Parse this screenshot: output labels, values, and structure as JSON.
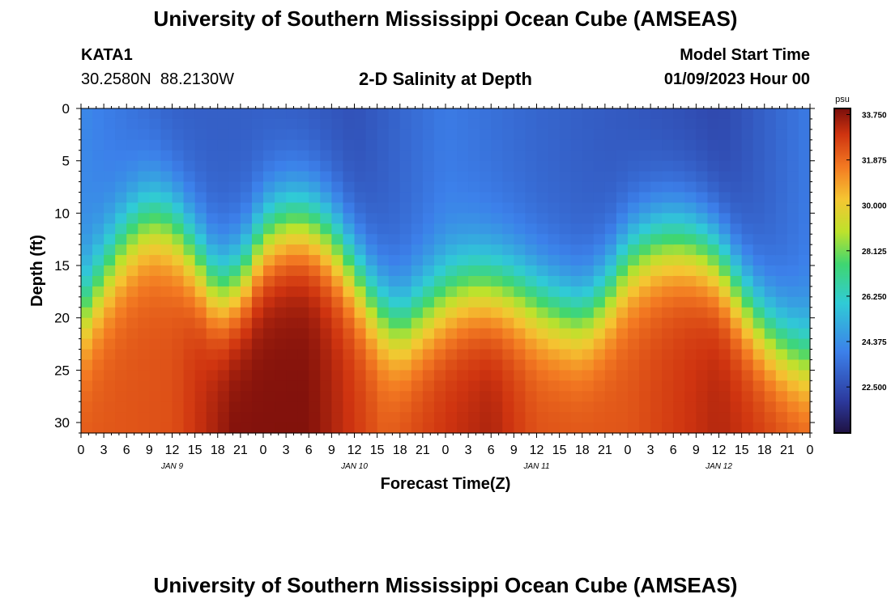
{
  "header": {
    "title": "University of Southern Mississippi Ocean Cube (AMSEAS)",
    "station_id": "KATA1",
    "coords": "30.2580N  88.2130W",
    "chart_name": "2-D Salinity at Depth",
    "start_label": "Model Start Time",
    "start_value": "01/09/2023 Hour 00"
  },
  "footer": {
    "title": "University of Southern Mississippi Ocean Cube (AMSEAS)"
  },
  "chart_data": {
    "type": "heatmap",
    "title": "2-D Salinity at Depth",
    "xlabel": "Forecast Time(Z)",
    "ylabel": "Depth (ft)",
    "ylim": [
      0,
      31
    ],
    "y_ticks": [
      0,
      5,
      10,
      15,
      20,
      25,
      30
    ],
    "x_hours": [
      0,
      3,
      6,
      9,
      12,
      15,
      18,
      21,
      24,
      27,
      30,
      33,
      36,
      39,
      42,
      45,
      48,
      51,
      54,
      57,
      60,
      63,
      66,
      69,
      72,
      75,
      78,
      81,
      84,
      87,
      90,
      93,
      96
    ],
    "x_tick_labels": [
      "0",
      "3",
      "6",
      "9",
      "12",
      "15",
      "18",
      "21",
      "0",
      "3",
      "6",
      "9",
      "12",
      "15",
      "18",
      "21",
      "0",
      "3",
      "6",
      "9",
      "12",
      "15",
      "18",
      "21",
      "0",
      "3",
      "6",
      "9",
      "12",
      "15",
      "18",
      "21",
      "0"
    ],
    "date_labels": [
      {
        "label": "JAN 9",
        "hour": 12
      },
      {
        "label": "JAN 10",
        "hour": 36
      },
      {
        "label": "JAN 11",
        "hour": 60
      },
      {
        "label": "JAN 12",
        "hour": 84
      }
    ],
    "colorbar": {
      "unit": "psu",
      "min": 20.6,
      "max": 34.0,
      "ticks": [
        "33.750",
        "31.875",
        "30.000",
        "28.125",
        "26.250",
        "24.375",
        "22.500"
      ],
      "tick_values": [
        33.75,
        31.875,
        30.0,
        28.125,
        26.25,
        24.375,
        22.5
      ]
    },
    "halocline_depth_ft": {
      "hours": [
        0,
        3,
        6,
        9,
        12,
        15,
        18,
        21,
        24,
        27,
        30,
        33,
        36,
        39,
        42,
        45,
        48,
        51,
        54,
        57,
        60,
        63,
        66,
        69,
        72,
        75,
        78,
        81,
        84,
        87,
        90,
        93,
        96
      ],
      "depth": [
        20,
        16,
        12.5,
        10.5,
        11,
        14,
        17.5,
        16.5,
        12.5,
        11,
        11,
        12.5,
        15.5,
        19,
        21,
        19.5,
        18,
        17,
        17,
        17.5,
        18.5,
        19.5,
        20,
        18,
        14.5,
        13,
        12.5,
        13,
        14.5,
        18,
        21,
        23,
        24
      ]
    },
    "surface_salinity_psu": {
      "hours": [
        0,
        12,
        24,
        36,
        48,
        60,
        72,
        84,
        96
      ],
      "values": [
        24.2,
        23.0,
        23.0,
        22.6,
        23.8,
        23.2,
        22.8,
        22.3,
        23.8
      ]
    },
    "bottom_salinity_psu": {
      "hours": [
        0,
        12,
        20,
        30,
        40,
        48,
        54,
        60,
        72,
        84,
        96
      ],
      "values": [
        32.2,
        32.4,
        33.9,
        33.9,
        32.2,
        33.0,
        33.4,
        32.4,
        32.3,
        33.3,
        32.3
      ]
    }
  }
}
